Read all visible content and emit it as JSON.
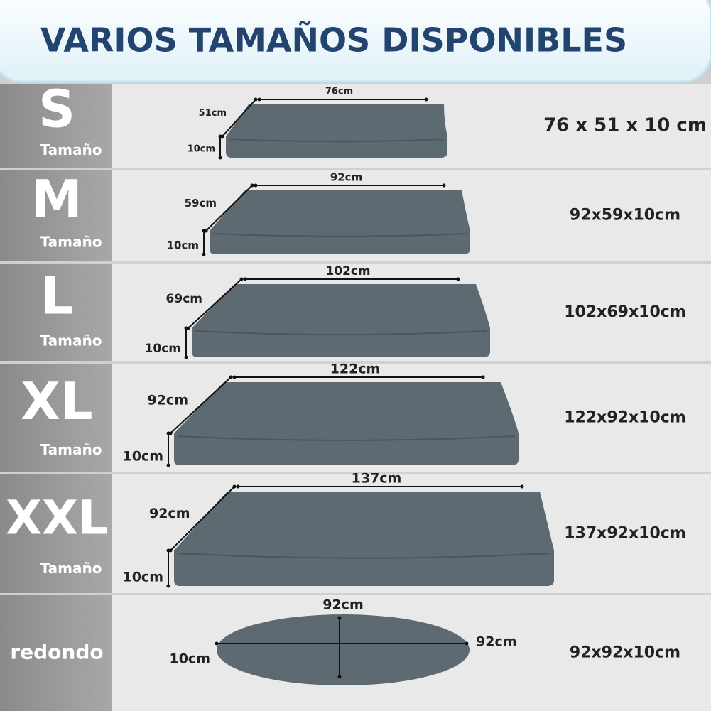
{
  "header": {
    "title": "VARIOS TAMAÑOS DISPONIBLES"
  },
  "rows": [
    {
      "size": "S",
      "label": "Tamaño",
      "width": "76cm",
      "depth": "51cm",
      "height": "10cm",
      "dimensions": "76 x 51 x 10 cm"
    },
    {
      "size": "M",
      "label": "Tamaño",
      "width": "92cm",
      "depth": "59cm",
      "height": "10cm",
      "dimensions": "92x59x10cm"
    },
    {
      "size": "L",
      "label": "Tamaño",
      "width": "102cm",
      "depth": "69cm",
      "height": "10cm",
      "dimensions": "102x69x10cm"
    },
    {
      "size": "XL",
      "label": "Tamaño",
      "width": "122cm",
      "depth": "92cm",
      "height": "10cm",
      "dimensions": "122x92x10cm"
    },
    {
      "size": "XXL",
      "label": "Tamaño",
      "width": "137cm",
      "depth": "92cm",
      "height": "10cm",
      "dimensions": "137x92x10cm"
    },
    {
      "size": "redondo",
      "width": "92cm",
      "depth": "92cm",
      "height": "10cm",
      "dimensions": "92x92x10cm"
    }
  ]
}
